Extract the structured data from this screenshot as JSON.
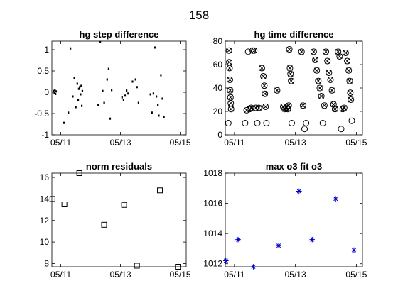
{
  "figure": {
    "title": "158"
  },
  "chart_data": [
    {
      "type": "scatter",
      "title": "hg step difference",
      "xlabel": "",
      "ylabel": "",
      "xlim": [
        10.7,
        15.2
      ],
      "ylim": [
        -1,
        1.2
      ],
      "xticks": [
        {
          "v": 11,
          "label": "05/11"
        },
        {
          "v": 13,
          "label": "05/13"
        },
        {
          "v": 15,
          "label": "05/15"
        }
      ],
      "yticks": [
        {
          "v": -1,
          "label": "-1"
        },
        {
          "v": -0.5,
          "label": "-0.5"
        },
        {
          "v": 0,
          "label": "0"
        },
        {
          "v": 0.5,
          "label": "0.5"
        },
        {
          "v": 1,
          "label": "1"
        }
      ],
      "marker": "dot",
      "color": "#000000",
      "series": [
        {
          "points": [
            [
              10.75,
              0.03
            ],
            [
              10.78,
              -0.02
            ],
            [
              10.8,
              0.05
            ],
            [
              10.82,
              -0.04
            ],
            [
              10.84,
              0.02
            ],
            [
              11.1,
              -0.72
            ],
            [
              11.25,
              -0.48
            ],
            [
              11.32,
              1.03
            ],
            [
              11.4,
              -0.1
            ],
            [
              11.45,
              0.33
            ],
            [
              11.5,
              -0.35
            ],
            [
              11.55,
              0.2
            ],
            [
              11.58,
              -0.18
            ],
            [
              11.6,
              0.08
            ],
            [
              11.63,
              0.12
            ],
            [
              11.66,
              -0.05
            ],
            [
              11.68,
              0.15
            ],
            [
              11.7,
              -0.32
            ],
            [
              11.72,
              0.03
            ],
            [
              12.25,
              -0.3
            ],
            [
              12.32,
              1.18
            ],
            [
              12.4,
              0.03
            ],
            [
              12.45,
              -0.25
            ],
            [
              12.55,
              0.3
            ],
            [
              12.6,
              0.55
            ],
            [
              12.65,
              -0.62
            ],
            [
              12.7,
              0.05
            ],
            [
              13.05,
              -0.12
            ],
            [
              13.1,
              -0.18
            ],
            [
              13.15,
              -0.08
            ],
            [
              13.2,
              0.04
            ],
            [
              13.25,
              -0.03
            ],
            [
              13.4,
              0.25
            ],
            [
              13.5,
              0.3
            ],
            [
              13.55,
              0.12
            ],
            [
              13.6,
              -0.25
            ],
            [
              14.0,
              -0.05
            ],
            [
              14.05,
              -0.48
            ],
            [
              14.1,
              -0.03
            ],
            [
              14.15,
              1.05
            ],
            [
              14.2,
              -0.1
            ],
            [
              14.25,
              -0.3
            ],
            [
              14.28,
              -0.55
            ],
            [
              14.35,
              0.4
            ],
            [
              14.4,
              -0.15
            ],
            [
              14.45,
              -0.58
            ]
          ]
        }
      ]
    },
    {
      "type": "scatter",
      "title": "hg time difference",
      "xlabel": "",
      "ylabel": "",
      "xlim": [
        10.7,
        15.2
      ],
      "ylim": [
        0,
        80
      ],
      "xticks": [
        {
          "v": 11,
          "label": "05/11"
        },
        {
          "v": 13,
          "label": "05/13"
        },
        {
          "v": 15,
          "label": "05/15"
        }
      ],
      "yticks": [
        {
          "v": 0,
          "label": "0"
        },
        {
          "v": 20,
          "label": "20"
        },
        {
          "v": 40,
          "label": "40"
        },
        {
          "v": 60,
          "label": "60"
        },
        {
          "v": 80,
          "label": "80"
        }
      ],
      "color": "#000000",
      "series": [
        {
          "marker": "circle",
          "points": [
            [
              10.8,
              10
            ],
            [
              10.82,
              72
            ],
            [
              10.83,
              62
            ],
            [
              10.84,
              57
            ],
            [
              10.85,
              47
            ],
            [
              10.86,
              38
            ],
            [
              10.87,
              32
            ],
            [
              10.88,
              27
            ],
            [
              10.89,
              22
            ],
            [
              11.35,
              10
            ],
            [
              11.4,
              21
            ],
            [
              11.45,
              71
            ],
            [
              11.5,
              22
            ],
            [
              11.55,
              23
            ],
            [
              11.6,
              72
            ],
            [
              11.65,
              72
            ],
            [
              11.7,
              23
            ],
            [
              11.75,
              10
            ],
            [
              11.8,
              23
            ],
            [
              11.9,
              57
            ],
            [
              11.95,
              50
            ],
            [
              11.98,
              42
            ],
            [
              12.0,
              35
            ],
            [
              12.02,
              24
            ],
            [
              12.05,
              10
            ],
            [
              12.4,
              38
            ],
            [
              12.6,
              24
            ],
            [
              12.65,
              22
            ],
            [
              12.7,
              23
            ],
            [
              12.75,
              22
            ],
            [
              12.78,
              25
            ],
            [
              12.8,
              73
            ],
            [
              12.82,
              57
            ],
            [
              12.84,
              52
            ],
            [
              12.86,
              46
            ],
            [
              12.88,
              10
            ],
            [
              13.2,
              71
            ],
            [
              13.25,
              25
            ],
            [
              13.3,
              5
            ],
            [
              13.35,
              10
            ],
            [
              13.6,
              71
            ],
            [
              13.65,
              64
            ],
            [
              13.7,
              55
            ],
            [
              13.75,
              46
            ],
            [
              13.8,
              40
            ],
            [
              13.85,
              33
            ],
            [
              13.9,
              10
            ],
            [
              13.95,
              25
            ],
            [
              14.0,
              71
            ],
            [
              14.05,
              63
            ],
            [
              14.1,
              53
            ],
            [
              14.15,
              47
            ],
            [
              14.2,
              38
            ],
            [
              14.25,
              26
            ],
            [
              14.3,
              22
            ],
            [
              14.4,
              71
            ],
            [
              14.45,
              67
            ],
            [
              14.5,
              5
            ],
            [
              14.55,
              22
            ],
            [
              14.6,
              23
            ],
            [
              14.65,
              70
            ],
            [
              14.7,
              63
            ],
            [
              14.75,
              55
            ],
            [
              14.78,
              46
            ],
            [
              14.8,
              36
            ],
            [
              14.82,
              30
            ],
            [
              14.85,
              12
            ]
          ]
        },
        {
          "marker": "x",
          "points": [
            [
              10.82,
              72
            ],
            [
              10.83,
              62
            ],
            [
              10.84,
              57
            ],
            [
              10.85,
              47
            ],
            [
              10.86,
              38
            ],
            [
              10.87,
              32
            ],
            [
              10.88,
              27
            ],
            [
              10.89,
              22
            ],
            [
              11.4,
              21
            ],
            [
              11.5,
              22
            ],
            [
              11.55,
              23
            ],
            [
              11.65,
              72
            ],
            [
              11.7,
              23
            ],
            [
              11.8,
              23
            ],
            [
              11.9,
              57
            ],
            [
              11.95,
              50
            ],
            [
              11.98,
              42
            ],
            [
              12.0,
              35
            ],
            [
              12.02,
              24
            ],
            [
              12.4,
              38
            ],
            [
              12.6,
              24
            ],
            [
              12.65,
              22
            ],
            [
              12.7,
              23
            ],
            [
              12.75,
              22
            ],
            [
              12.78,
              25
            ],
            [
              12.8,
              73
            ],
            [
              12.82,
              57
            ],
            [
              12.84,
              52
            ],
            [
              12.86,
              46
            ],
            [
              13.2,
              71
            ],
            [
              13.25,
              25
            ],
            [
              13.6,
              71
            ],
            [
              13.65,
              64
            ],
            [
              13.7,
              55
            ],
            [
              13.75,
              46
            ],
            [
              13.8,
              40
            ],
            [
              13.85,
              33
            ],
            [
              13.95,
              25
            ],
            [
              14.0,
              71
            ],
            [
              14.05,
              63
            ],
            [
              14.1,
              53
            ],
            [
              14.15,
              47
            ],
            [
              14.2,
              38
            ],
            [
              14.25,
              26
            ],
            [
              14.3,
              22
            ],
            [
              14.4,
              71
            ],
            [
              14.45,
              67
            ],
            [
              14.55,
              22
            ],
            [
              14.6,
              23
            ],
            [
              14.65,
              70
            ],
            [
              14.7,
              63
            ],
            [
              14.75,
              55
            ],
            [
              14.78,
              46
            ],
            [
              14.8,
              36
            ],
            [
              14.82,
              30
            ]
          ]
        }
      ]
    },
    {
      "type": "scatter",
      "title": "norm residuals",
      "xlabel": "",
      "ylabel": "",
      "xlim": [
        10.7,
        15.2
      ],
      "ylim": [
        7.7,
        16.4
      ],
      "xticks": [
        {
          "v": 11,
          "label": "05/11"
        },
        {
          "v": 13,
          "label": "05/13"
        },
        {
          "v": 15,
          "label": "05/15"
        }
      ],
      "yticks": [
        {
          "v": 8,
          "label": "8"
        },
        {
          "v": 10,
          "label": "10"
        },
        {
          "v": 12,
          "label": "12"
        },
        {
          "v": 14,
          "label": "14"
        },
        {
          "v": 16,
          "label": "16"
        }
      ],
      "color": "#000000",
      "series": [
        {
          "marker": "square",
          "points": [
            [
              10.72,
              14.0
            ],
            [
              11.12,
              13.5
            ],
            [
              11.62,
              16.4
            ],
            [
              12.45,
              11.6
            ],
            [
              13.12,
              13.45
            ],
            [
              13.55,
              7.8
            ],
            [
              14.32,
              14.8
            ],
            [
              14.92,
              7.7
            ]
          ]
        }
      ]
    },
    {
      "type": "scatter",
      "title": "max o3 fit o3",
      "xlabel": "",
      "ylabel": "",
      "xlim": [
        10.7,
        15.2
      ],
      "ylim": [
        1011.8,
        1018
      ],
      "xticks": [
        {
          "v": 11,
          "label": "05/11"
        },
        {
          "v": 13,
          "label": "05/13"
        },
        {
          "v": 15,
          "label": "05/15"
        }
      ],
      "yticks": [
        {
          "v": 1012,
          "label": "1012"
        },
        {
          "v": 1014,
          "label": "1014"
        },
        {
          "v": 1016,
          "label": "1016"
        },
        {
          "v": 1018,
          "label": "1018"
        }
      ],
      "color": "#0000cc",
      "series": [
        {
          "marker": "asterisk",
          "points": [
            [
              10.72,
              1012.2
            ],
            [
              11.12,
              1013.6
            ],
            [
              11.62,
              1011.8
            ],
            [
              12.45,
              1013.2
            ],
            [
              13.12,
              1016.8
            ],
            [
              13.55,
              1013.6
            ],
            [
              14.32,
              1016.3
            ],
            [
              14.92,
              1012.9
            ]
          ]
        }
      ]
    }
  ]
}
